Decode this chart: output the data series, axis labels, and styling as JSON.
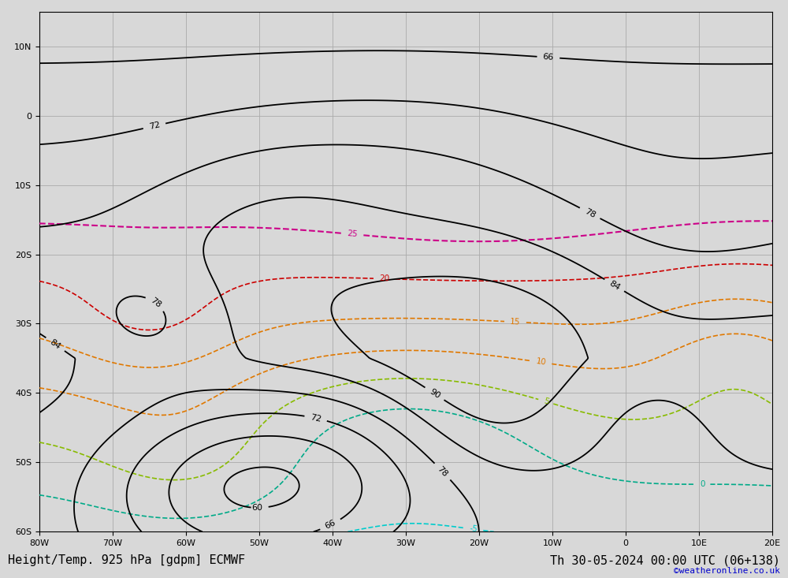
{
  "title_left": "Height/Temp. 925 hPa [gdpm] ECMWF",
  "title_right": "Th 30-05-2024 00:00 UTC (06+138)",
  "watermark": "©weatheronline.co.uk",
  "background_color": "#d8d8d8",
  "ocean_color": "#d8d8d8",
  "land_color": "#b8e898",
  "border_color": "#999999",
  "figsize": [
    10.0,
    7.33
  ],
  "dpi": 100,
  "xlim": [
    -80,
    20
  ],
  "ylim": [
    -60,
    15
  ],
  "grid_color": "#aaaaaa",
  "grid_lw": 0.6,
  "xticks": [
    -80,
    -70,
    -60,
    -50,
    -40,
    -30,
    -20,
    -10,
    0,
    10,
    20
  ],
  "yticks": [
    -60,
    -50,
    -40,
    -30,
    -20,
    -10,
    0,
    10
  ],
  "xtick_labels": [
    "80W",
    "70W",
    "60W",
    "50W",
    "40W",
    "30W",
    "20W",
    "10W",
    "0",
    "10E",
    "20E"
  ],
  "ytick_labels": [
    "60S",
    "50S",
    "40S",
    "30S",
    "20S",
    "10S",
    "0",
    "10N"
  ],
  "font_size_title": 11,
  "font_size_ticks": 8,
  "font_size_watermark": 8,
  "contour_black_color": "#000000",
  "contour_red_color": "#cc0000",
  "contour_orange_color": "#e07800",
  "contour_green_color": "#88bb00",
  "contour_teal_color": "#00aa88",
  "contour_cyan_color": "#00cccc",
  "contour_blue_color": "#0055cc",
  "contour_magenta_color": "#cc0088"
}
